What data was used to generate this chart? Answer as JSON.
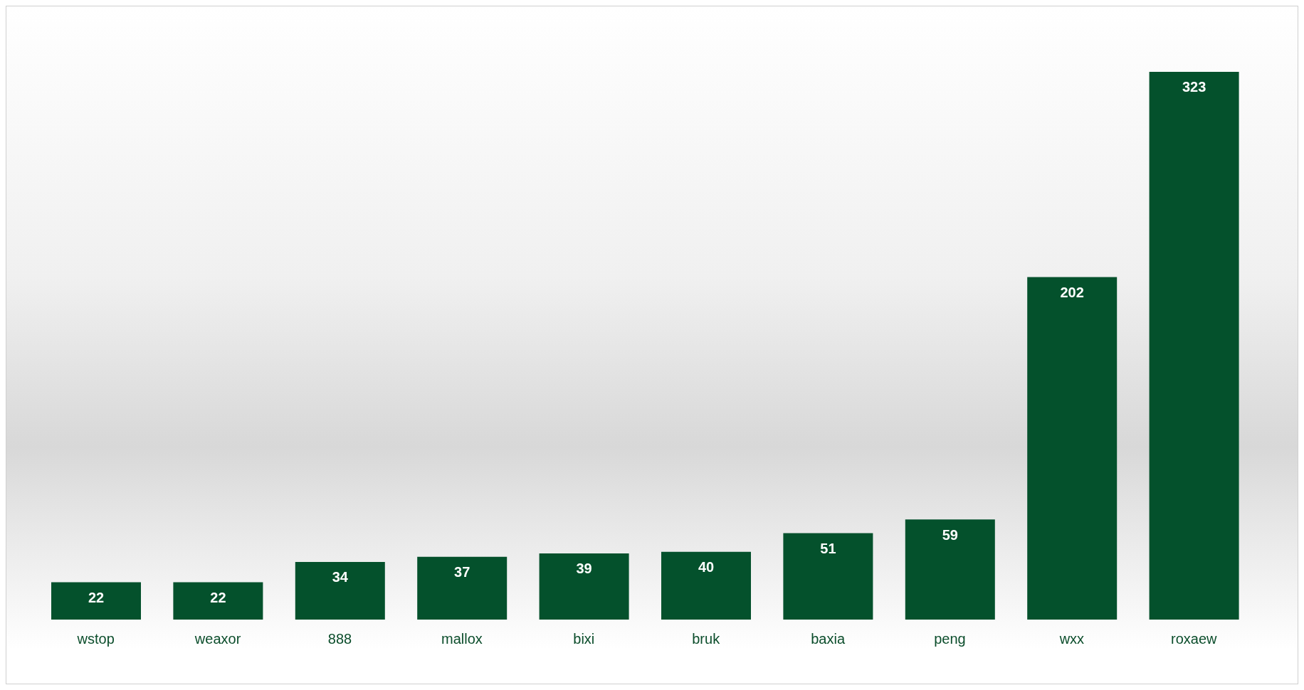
{
  "chart_data": {
    "type": "bar",
    "categories": [
      "wstop",
      "weaxor",
      "888",
      "mallox",
      "bixi",
      "bruk",
      "baxia",
      "peng",
      "wxx",
      "roxaew"
    ],
    "values": [
      22,
      22,
      34,
      37,
      39,
      40,
      51,
      59,
      202,
      323
    ],
    "color": "#04512c",
    "data_labels": true,
    "grid": false,
    "legend": false
  }
}
